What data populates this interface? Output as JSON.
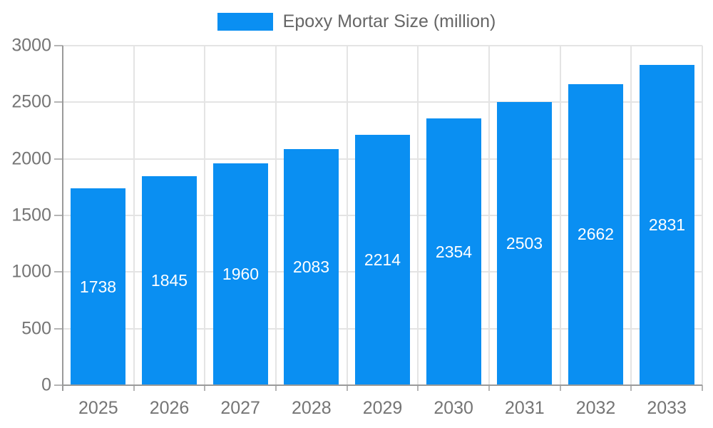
{
  "legend": {
    "label": "Epoxy Mortar Size (million)"
  },
  "chart_data": {
    "type": "bar",
    "title": "Epoxy Mortar Size (million)",
    "categories": [
      "2025",
      "2026",
      "2027",
      "2028",
      "2029",
      "2030",
      "2031",
      "2032",
      "2033"
    ],
    "values": [
      1738,
      1845,
      1960,
      2083,
      2214,
      2354,
      2503,
      2662,
      2831
    ],
    "value_labels": [
      "1738",
      "1845",
      "1960",
      "2083",
      "2214",
      "2354",
      "2503",
      "2662",
      "2831"
    ],
    "xlabel": "",
    "ylabel": "",
    "ylim": [
      0,
      3000
    ],
    "ytick_step": 500,
    "yticks": [
      "0",
      "500",
      "1000",
      "1500",
      "2000",
      "2500",
      "3000"
    ],
    "grid": true,
    "legend_position": "top-center",
    "colors": {
      "bar": "#0a8ff2",
      "grid": "#e4e4e4",
      "axis": "#9a9a9a",
      "tick_label": "#757575",
      "legend_text": "#666666",
      "value_label": "#ffffff",
      "background": "#ffffff"
    }
  }
}
